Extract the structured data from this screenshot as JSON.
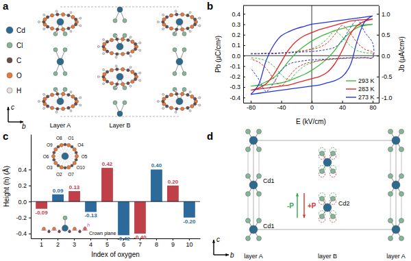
{
  "panel_labels": [
    "a",
    "b",
    "c",
    "d"
  ],
  "chart_data": [
    {
      "type": "line",
      "x_label": "E (kV/cm)",
      "y_label": "Pb (μC/cm²)",
      "y2_label": "Jb (μA/cm²)",
      "xlim": [
        -90,
        88
      ],
      "xticks": [
        -80,
        -40,
        0,
        40,
        80
      ],
      "ylim": [
        -0.45,
        0.48
      ],
      "yticks": [
        -0.4,
        -0.3,
        -0.2,
        -0.1,
        {
          "value": 0,
          "label": "0.0"
        },
        0.1,
        0.2,
        0.3,
        0.4
      ],
      "y2lim": [
        -1.125,
        1.2
      ],
      "y2ticks": [
        {
          "value": -1,
          "label": "-1.0"
        },
        -0.5,
        {
          "value": 0,
          "label": "0.0"
        },
        0.5,
        {
          "value": 1,
          "label": "1.0"
        }
      ],
      "legend": "lower right",
      "x": [
        -80,
        -70,
        -60,
        -50,
        -40,
        -30,
        -20,
        -10,
        0,
        10,
        20,
        30,
        40,
        50,
        60,
        70,
        80,
        80,
        70,
        60,
        50,
        40,
        30,
        20,
        10,
        0,
        -10,
        -20,
        -30,
        -40,
        -50,
        -60,
        -70,
        -80
      ],
      "series": [
        {
          "name": "293 K",
          "color": "#3dbb3d",
          "line_style": "solid",
          "values": [
            -0.29,
            -0.285,
            -0.28,
            -0.27,
            -0.26,
            -0.24,
            -0.21,
            -0.18,
            -0.14,
            -0.09,
            -0.03,
            0.05,
            0.15,
            0.22,
            0.27,
            0.29,
            0.3,
            0.3,
            0.295,
            0.29,
            0.28,
            0.26,
            0.24,
            0.21,
            0.18,
            0.14,
            0.09,
            0.03,
            -0.05,
            -0.14,
            -0.21,
            -0.25,
            -0.28,
            -0.29
          ]
        },
        {
          "name": "283 K",
          "color": "#e8211f",
          "line_style": "solid",
          "values": [
            -0.33,
            -0.32,
            -0.31,
            -0.3,
            -0.29,
            -0.28,
            -0.26,
            -0.24,
            -0.22,
            -0.2,
            -0.16,
            -0.08,
            0.05,
            0.2,
            0.29,
            0.33,
            0.35,
            0.35,
            0.345,
            0.34,
            0.33,
            0.31,
            0.29,
            0.27,
            0.25,
            0.22,
            0.19,
            0.14,
            0.06,
            -0.06,
            -0.18,
            -0.27,
            -0.31,
            -0.33
          ]
        },
        {
          "name": "273 K",
          "color": "#2233dd",
          "line_style": "solid",
          "values": [
            -0.37,
            -0.36,
            -0.35,
            -0.34,
            -0.33,
            -0.32,
            -0.31,
            -0.3,
            -0.29,
            -0.28,
            -0.26,
            -0.24,
            -0.2,
            -0.1,
            0.15,
            0.33,
            0.38,
            0.38,
            0.37,
            0.36,
            0.35,
            0.34,
            0.33,
            0.32,
            0.31,
            0.3,
            0.28,
            0.26,
            0.23,
            0.19,
            0.1,
            -0.05,
            -0.28,
            -0.37
          ]
        },
        {
          "name": "293 K",
          "color": "#3dbb3d",
          "line_style": "dashed",
          "axis": "y2",
          "values": [
            0.04,
            0.04,
            0.05,
            0.05,
            0.06,
            0.07,
            0.09,
            0.12,
            0.17,
            0.25,
            0.4,
            0.58,
            0.45,
            0.25,
            0.12,
            0.07,
            0.05,
            -0.04,
            -0.04,
            -0.05,
            -0.05,
            -0.06,
            -0.07,
            -0.09,
            -0.12,
            -0.17,
            -0.25,
            -0.4,
            -0.58,
            -0.45,
            -0.25,
            -0.12,
            -0.07,
            -0.05
          ]
        },
        {
          "name": "283 K",
          "color": "#e8211f",
          "line_style": "dashed",
          "axis": "y2",
          "values": [
            0.05,
            0.05,
            0.06,
            0.06,
            0.07,
            0.08,
            0.1,
            0.12,
            0.15,
            0.2,
            0.3,
            0.5,
            0.72,
            0.55,
            0.3,
            0.15,
            0.08,
            -0.05,
            -0.05,
            -0.06,
            -0.06,
            -0.07,
            -0.08,
            -0.1,
            -0.12,
            -0.15,
            -0.2,
            -0.3,
            -0.5,
            -0.72,
            -0.55,
            -0.3,
            -0.15,
            -0.08
          ]
        },
        {
          "name": "273 K",
          "color": "#2233dd",
          "line_style": "dashed",
          "axis": "y2",
          "values": [
            0.05,
            0.05,
            0.05,
            0.05,
            0.06,
            0.07,
            0.08,
            0.09,
            0.1,
            0.12,
            0.15,
            0.2,
            0.35,
            0.65,
            0.85,
            0.55,
            0.3,
            -0.05,
            -0.05,
            -0.05,
            -0.05,
            -0.06,
            -0.07,
            -0.08,
            -0.09,
            -0.1,
            -0.12,
            -0.15,
            -0.2,
            -0.35,
            -0.65,
            -0.85,
            -0.55,
            -0.3
          ]
        }
      ]
    },
    {
      "type": "bar",
      "x_label": "Index of oxygen",
      "y_label": "Height (h) (Å)",
      "categories": [
        "1",
        "2",
        "3",
        "4",
        "5",
        "6",
        "7",
        "8",
        "9",
        "10"
      ],
      "values": [
        -0.09,
        0.09,
        0.13,
        -0.13,
        0.42,
        -0.42,
        -0.4,
        0.4,
        0.2,
        -0.2
      ],
      "value_labels": [
        "-0.09",
        "0.09",
        "0.13",
        "-0.13",
        "0.42",
        "-0.42",
        "-0.40",
        "0.40",
        "0.20",
        "-0.20"
      ],
      "colors": [
        "#c0404a",
        "#2b6a9a",
        "#c0404a",
        "#2b6a9a",
        "#c0404a",
        "#2b6a9a",
        "#c0404a",
        "#2b6a9a",
        "#c0404a",
        "#2b6a9a"
      ],
      "data_labels": true,
      "ylim": [
        -0.46,
        0.84
      ],
      "yticks": [
        -0.4,
        -0.2,
        {
          "value": 0,
          "label": "0.0"
        },
        0.2,
        0.4
      ],
      "annotations": {
        "oxygens": [
          "O8",
          "O1",
          "O4",
          "O5",
          "O10",
          "O7",
          "O2",
          "O3",
          "O6",
          "O9"
        ],
        "crown_plane": "Crown plane",
        "height": "h"
      }
    }
  ],
  "diagram_a": {
    "legend": [
      {
        "label": "Cd",
        "color": "#2e6a8e"
      },
      {
        "label": "Cl",
        "color": "#86b59a"
      },
      {
        "label": "C",
        "color": "#6b4b4b"
      },
      {
        "label": "O",
        "color": "#e8793a"
      },
      {
        "label": "H",
        "color": "#e6dede"
      }
    ],
    "layers": [
      "Layer A",
      "Layer B"
    ],
    "axes": [
      "c",
      "b"
    ]
  },
  "diagram_d": {
    "atoms": [
      "Cd1",
      "Cd2"
    ],
    "polarization": [
      {
        "label": "-P",
        "color": "#2fa84f"
      },
      {
        "label": "+P",
        "color": "#d9332b"
      }
    ],
    "axes": [
      "c",
      "b"
    ],
    "layers": [
      "layer A",
      "layer B",
      "layer A"
    ]
  }
}
